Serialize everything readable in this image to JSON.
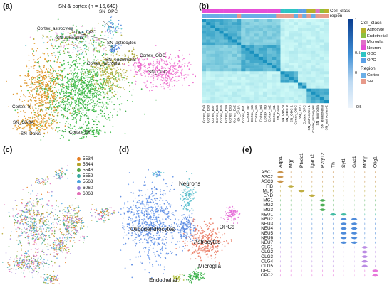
{
  "panels": {
    "a": {
      "label": "(a)",
      "title": "SN & cortex (n = 16,649)",
      "clusters": [
        {
          "label": "SN_OPC"
        },
        {
          "label": "Cortex_astrocytes"
        },
        {
          "label": "Cortex_OPC"
        },
        {
          "label": "SN_microglia"
        },
        {
          "label": "SN_astrocytes"
        },
        {
          "label": "SN_endothelial"
        },
        {
          "label": "Cortex_ODC"
        },
        {
          "label": "SN_ODC"
        },
        {
          "label": "Cortex_microglia"
        },
        {
          "label": "Cortex_In"
        },
        {
          "label": "SN_GABA"
        },
        {
          "label": "SN_DaNs"
        },
        {
          "label": "Cortex_Ex"
        }
      ]
    },
    "b": {
      "label": "(b)",
      "annotation_labels": [
        "Cell_class",
        "region"
      ],
      "legend_cell_class_title": "Cell_class",
      "cell_classes": [
        {
          "name": "Astrocyte",
          "color": "#b8b02a"
        },
        {
          "name": "Endothelial",
          "color": "#8cbf3f"
        },
        {
          "name": "Microglia",
          "color": "#e070c8"
        },
        {
          "name": "Neuron",
          "color": "#e64fd6"
        },
        {
          "name": "ODC",
          "color": "#2ec4c4"
        },
        {
          "name": "OPC",
          "color": "#5aa0e6"
        }
      ],
      "legend_region_title": "Region",
      "regions": [
        {
          "name": "Cortex",
          "color": "#6aaee6"
        },
        {
          "name": "SN",
          "color": "#e79a8a"
        }
      ],
      "colorbar_ticks": [
        "1",
        "0.5",
        "0",
        "-0.5"
      ],
      "column_labels": [
        "Cortex_Ex9",
        "Cortex_Ex8",
        "Cortex_Ex7",
        "Cortex_Ex6",
        "Cortex_Ex5",
        "Cortex_Ex4",
        "Cortex_Ex3",
        "Cortex_Ex2",
        "SN_GABA",
        "Cortex_Ex1",
        "Cortex_In7",
        "Cortex_In6",
        "Cortex_In5",
        "Cortex_In4",
        "Cortex_In3",
        "Cortex_In2",
        "Cortex_In1",
        "SN_DaNs",
        "SN_ODC-3",
        "SN_ODC-2",
        "SN_ODC-1",
        "Cortex_ODC",
        "SN_OPC",
        "Cortex_OPC",
        "SN_astrocytes-1",
        "Cortex_astrocytes",
        "SN_microglia",
        "SN_endothelial",
        "SN_astrocytes-2"
      ]
    },
    "c": {
      "label": "(c)",
      "legend": [
        {
          "name": "5534",
          "color": "#e67e22"
        },
        {
          "name": "5544",
          "color": "#b5a22a"
        },
        {
          "name": "5546",
          "color": "#59a84b"
        },
        {
          "name": "5552",
          "color": "#3aa8a0"
        },
        {
          "name": "5563",
          "color": "#4aa3df"
        },
        {
          "name": "6060",
          "color": "#9b7fd4"
        },
        {
          "name": "6063",
          "color": "#e36fb7"
        }
      ]
    },
    "d": {
      "label": "(d)",
      "clusters": [
        {
          "label": "Neurons",
          "color": "#63c7d6"
        },
        {
          "label": "OPCs",
          "color": "#e466d6"
        },
        {
          "label": "Oligodendrocytes",
          "color": "#5b8de6"
        },
        {
          "label": "Astrocytes",
          "color": "#e57158"
        },
        {
          "label": "Endothelial",
          "color": "#a8b92a"
        },
        {
          "label": "Microglia",
          "color": "#3cb84b"
        }
      ]
    },
    "e": {
      "label": "(e)",
      "genes": [
        "Aqp4",
        "Mgp",
        "Ptxdc1",
        "Igam2",
        "P2ry12",
        "Th",
        "Syt1",
        "Gad1",
        "Mobp",
        "Olig1"
      ],
      "cell_types": [
        "ASC1",
        "ASC2",
        "ASC3",
        "FIB",
        "MUR",
        "END",
        "MG1",
        "MG2",
        "MG3",
        "NEU1",
        "NEU2",
        "NEU3",
        "NEU4",
        "NEU5",
        "NEU6",
        "NEU7",
        "OLG1",
        "OLG2",
        "OLG3",
        "OLG4",
        "OLG5",
        "OPC1",
        "OPC2"
      ]
    }
  }
}
